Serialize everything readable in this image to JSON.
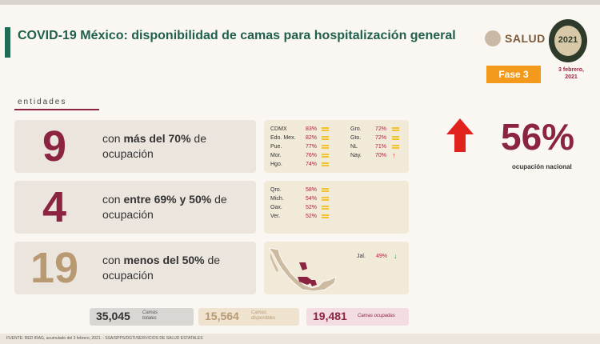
{
  "header": {
    "title": "COVID-19 México: disponibilidad de camas para hospitalización general",
    "salud_label": "SALUD",
    "logo_year": "2021",
    "fase": "Fase 3",
    "fecha_line1": "3 febrero,",
    "fecha_line2": "2021"
  },
  "section_label": "entidades",
  "rows": [
    {
      "number": "9",
      "color": "#8b2440",
      "pre": "con ",
      "bold": "más del 70%",
      "post": " de",
      "line2": "ocupación",
      "states_left": [
        {
          "name": "CDMX",
          "pct": "83%",
          "ind": "equal"
        },
        {
          "name": "Edo. Mex.",
          "pct": "82%",
          "ind": "equal"
        },
        {
          "name": "Pue.",
          "pct": "77%",
          "ind": "equal"
        },
        {
          "name": "Mor.",
          "pct": "76%",
          "ind": "equal"
        },
        {
          "name": "Hgo.",
          "pct": "74%",
          "ind": "equal"
        }
      ],
      "states_right": [
        {
          "name": "Gro.",
          "pct": "72%",
          "ind": "equal"
        },
        {
          "name": "Gto.",
          "pct": "72%",
          "ind": "equal"
        },
        {
          "name": "NL",
          "pct": "71%",
          "ind": "equal"
        },
        {
          "name": "Nay.",
          "pct": "70%",
          "ind": "up"
        }
      ]
    },
    {
      "number": "4",
      "color": "#8b2440",
      "pre": "con ",
      "bold": "entre 69% y 50%",
      "post": " de",
      "line2": "ocupación",
      "states_left": [
        {
          "name": "Qro.",
          "pct": "58%",
          "ind": "equal"
        },
        {
          "name": "Mich.",
          "pct": "54%",
          "ind": "equal"
        },
        {
          "name": "Oax.",
          "pct": "52%",
          "ind": "equal"
        },
        {
          "name": "Ver.",
          "pct": "52%",
          "ind": "equal"
        }
      ]
    },
    {
      "number": "19",
      "color": "#b89a72",
      "pre": "con ",
      "bold": "menos del 50%",
      "post": " de",
      "line2": "ocupación",
      "states_right": [
        {
          "name": "Jal.",
          "pct": "49%",
          "ind": "down"
        }
      ]
    }
  ],
  "national": {
    "pct": "56%",
    "label": "ocupación nacional",
    "trend": "up"
  },
  "totals": [
    {
      "value": "35,045",
      "label1": "Camas",
      "label2": "totales",
      "bg": "#d9d6d3",
      "color": "#333333"
    },
    {
      "value": "15,564",
      "label1": "Camas",
      "label2": "disponibles",
      "bg": "#efe3d0",
      "color": "#b89a72"
    },
    {
      "value": "19,481",
      "label1": "Camas ocupadas",
      "label2": "",
      "bg": "#f3dde2",
      "color": "#8b2440"
    }
  ],
  "footer": "FUENTE: RED IRAG, acumulado del 3 febrero, 2021. - SSA/SPPS/DGTI/SERVICIOS DE SALUD ESTATALES",
  "colors": {
    "brand_green": "#1f5f4c",
    "wine": "#8b2440",
    "gold": "#b89a72",
    "orange": "#f39a1d",
    "up_red": "#e0211c",
    "down_green": "#2e9e44"
  }
}
